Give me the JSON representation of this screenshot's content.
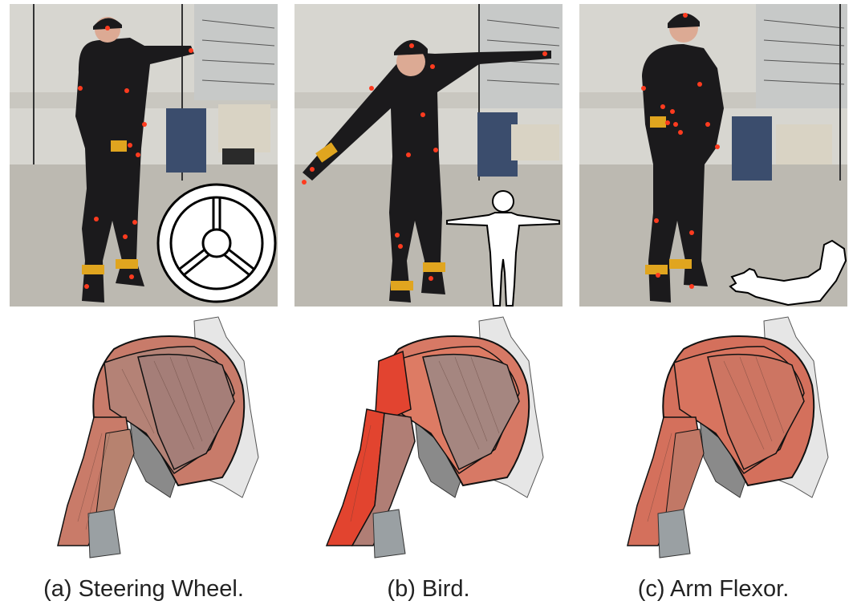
{
  "panels": [
    {
      "id": "a",
      "caption": "(a) Steering Wheel.",
      "pictogram": "steering-wheel-icon",
      "highlight": [
        "deltoid-anterior",
        "biceps"
      ],
      "colors": {
        "deltoid_front": "#c87b6a",
        "deltoid_mid": "#b48276",
        "deltoid_back": "#a57e78",
        "pectoral": "#9e7e78",
        "biceps": "#c97b69",
        "brachialis": "#b7826f"
      }
    },
    {
      "id": "b",
      "caption": "(b) Bird.",
      "pictogram": "t-pose-figure-icon",
      "highlight": [
        "deltoid",
        "triceps"
      ],
      "colors": {
        "deltoid_front": "#d77965",
        "deltoid_mid": "#dd7b64",
        "deltoid_back": "#e24430",
        "pectoral": "#a58680",
        "biceps": "#b07e75",
        "brachialis": "#e2442f"
      }
    },
    {
      "id": "c",
      "caption": "(c) Arm Flexor.",
      "pictogram": "flexed-arm-icon",
      "highlight": [
        "deltoid",
        "biceps"
      ],
      "colors": {
        "deltoid_front": "#d4705c",
        "deltoid_mid": "#d7745f",
        "deltoid_back": "#cd7562",
        "pectoral": "#a3847e",
        "biceps": "#d4705c",
        "brachialis": "#c17866"
      }
    }
  ],
  "scene": {
    "suit_color": "#1b1a1c",
    "floor_color": "#bdbab2",
    "wall_color": "#d7d6d0",
    "marker_color": "#ff3b1f",
    "band_color": "#e0a51f"
  }
}
